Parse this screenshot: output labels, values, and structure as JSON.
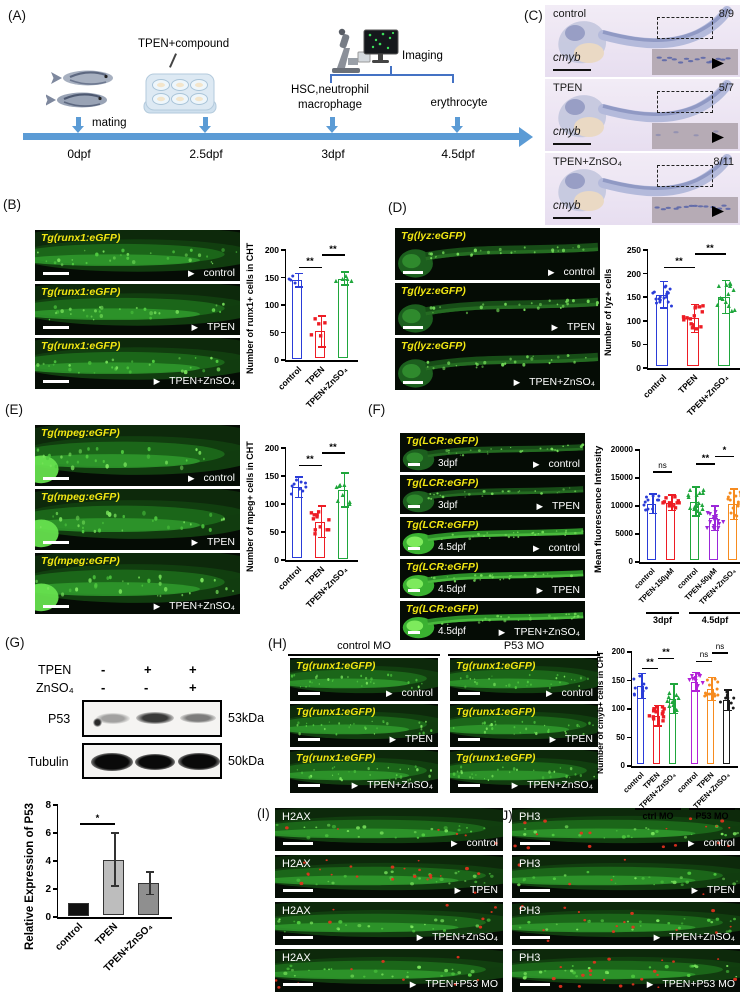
{
  "figure": {
    "panel_labels": {
      "A": "(A)",
      "B": "(B)",
      "C": "(C)",
      "D": "(D)",
      "E": "(E)",
      "F": "(F)",
      "G": "(G)",
      "H": "(H)",
      "I": "(I)",
      "J": "(J)"
    }
  },
  "panelA": {
    "compound_label": "TPEN+compound",
    "mating_label": "mating",
    "imaging_label": "Imaging",
    "imaging_targets_line1": "HSC,neutrophil",
    "imaging_targets_line2": "macrophage",
    "erythrocyte_label": "erythrocyte",
    "timepoints": [
      "0dpf",
      "2.5dpf",
      "3dpf",
      "4.5dpf"
    ],
    "arrow_color": "#5b9bd5"
  },
  "panelB": {
    "images": [
      {
        "gene": "Tg(runx1:eGFP)",
        "label": "control"
      },
      {
        "gene": "Tg(runx1:eGFP)",
        "label": "TPEN"
      },
      {
        "gene": "Tg(runx1:eGFP)",
        "label": "TPEN+ZnSO₄"
      }
    ]
  },
  "panelC": {
    "gene": "cmyb",
    "rows": [
      {
        "label": "control",
        "fraction": "8/9",
        "inset_dots": true
      },
      {
        "label": "TPEN",
        "fraction": "5/7",
        "inset_dots": false
      },
      {
        "label": "TPEN+ZnSO₄",
        "fraction": "8/11",
        "inset_dots": true
      }
    ]
  },
  "panelD": {
    "images": [
      {
        "gene": "Tg(lyz:eGFP)",
        "label": "control"
      },
      {
        "gene": "Tg(lyz:eGFP)",
        "label": "TPEN"
      },
      {
        "gene": "Tg(lyz:eGFP)",
        "label": "TPEN+ZnSO₄"
      }
    ]
  },
  "panelE": {
    "images": [
      {
        "gene": "Tg(mpeg:eGFP)",
        "label": "control"
      },
      {
        "gene": "Tg(mpeg:eGFP)",
        "label": "TPEN"
      },
      {
        "gene": "Tg(mpeg:eGFP)",
        "label": "TPEN+ZnSO₄"
      }
    ]
  },
  "panelF": {
    "images": [
      {
        "gene": "Tg(LCR:eGFP)",
        "time": "3dpf",
        "label": "control",
        "bright": false
      },
      {
        "gene": "Tg(LCR:eGFP)",
        "time": "3dpf",
        "label": "TPEN",
        "bright": false
      },
      {
        "gene": "Tg(LCR:eGFP)",
        "time": "4.5dpf",
        "label": "control",
        "bright": true
      },
      {
        "gene": "Tg(LCR:eGFP)",
        "time": "4.5dpf",
        "label": "TPEN",
        "bright": true
      },
      {
        "gene": "Tg(LCR:eGFP)",
        "time": "4.5dpf",
        "label": "TPEN+ZnSO₄",
        "bright": true
      }
    ]
  },
  "panelG": {
    "blot": {
      "tpen_label": "TPEN",
      "tpen_signs": [
        "-",
        "+",
        "+"
      ],
      "zn_label": "ZnSO₄",
      "zn_signs": [
        "-",
        "-",
        "+"
      ],
      "p53_label": "P53",
      "p53_kda": "53kDa",
      "tubulin_label": "Tubulin",
      "tubulin_kda": "50kDa"
    }
  },
  "panelH": {
    "col_headers": [
      "control MO",
      "P53 MO"
    ],
    "columns": [
      {
        "images": [
          {
            "gene": "Tg(runx1:eGFP)",
            "label": "control"
          },
          {
            "gene": "Tg(runx1:eGFP)",
            "label": "TPEN"
          },
          {
            "gene": "Tg(runx1:eGFP)",
            "label": "TPEN+ZnSO₄"
          }
        ]
      },
      {
        "images": [
          {
            "gene": "Tg(runx1:eGFP)",
            "label": "control"
          },
          {
            "gene": "Tg(runx1:eGFP)",
            "label": "TPEN"
          },
          {
            "gene": "Tg(runx1:eGFP)",
            "label": "TPEN+ZnSO₄"
          }
        ]
      }
    ]
  },
  "panelI": {
    "images": [
      {
        "stain": "H2AX",
        "label": "control",
        "red_dots": 6
      },
      {
        "stain": "H2AX",
        "label": "TPEN",
        "red_dots": 22
      },
      {
        "stain": "H2AX",
        "label": "TPEN+ZnSO₄",
        "red_dots": 7
      },
      {
        "stain": "H2AX",
        "label": "TPEN+P53 MO",
        "red_dots": 9
      }
    ]
  },
  "panelJ": {
    "images": [
      {
        "stain": "PH3",
        "label": "control",
        "red_dots": 18
      },
      {
        "stain": "PH3",
        "label": "TPEN",
        "red_dots": 5
      },
      {
        "stain": "PH3",
        "label": "TPEN+ZnSO₄",
        "red_dots": 16
      },
      {
        "stain": "PH3",
        "label": "TPEN+P53 MO",
        "red_dots": 20
      }
    ]
  },
  "chart_data": [
    {
      "panel": "B",
      "type": "bar",
      "ylabel": "Number of runx1+ cells in CHT",
      "categories": [
        "control",
        "TPEN",
        "TPEN+ZnSO₄"
      ],
      "values": [
        145,
        52,
        148
      ],
      "errors": [
        12,
        28,
        12
      ],
      "n_points": [
        4,
        5,
        5
      ],
      "colors": [
        "#2a3cd8",
        "#ed1c24",
        "#1fa63c"
      ],
      "markers": [
        "●",
        "■",
        "▲"
      ],
      "bar_style": "open",
      "ylim": [
        0,
        200
      ],
      "yticks": [
        0,
        50,
        100,
        150,
        200
      ],
      "sig": [
        {
          "a": 0,
          "b": 1,
          "label": "**",
          "y": 170
        },
        {
          "a": 1,
          "b": 2,
          "label": "**",
          "y": 192
        }
      ]
    },
    {
      "panel": "D",
      "type": "bar",
      "ylabel": "Number of lyz+ cells",
      "categories": [
        "control",
        "TPEN",
        "TPEN+ZnSO₄"
      ],
      "values": [
        155,
        105,
        150
      ],
      "errors": [
        28,
        30,
        35
      ],
      "n_points": [
        18,
        15,
        14
      ],
      "colors": [
        "#2a3cd8",
        "#ed1c24",
        "#1fa63c"
      ],
      "markers": [
        "●",
        "■",
        "▲"
      ],
      "bar_style": "open",
      "ylim": [
        0,
        250
      ],
      "yticks": [
        0,
        50,
        100,
        150,
        200,
        250
      ],
      "sig": [
        {
          "a": 0,
          "b": 1,
          "label": "**",
          "y": 215
        },
        {
          "a": 1,
          "b": 2,
          "label": "**",
          "y": 243
        }
      ]
    },
    {
      "panel": "E",
      "type": "bar",
      "ylabel": "Number of mpeg+ cells in CHT",
      "categories": [
        "control",
        "TPEN",
        "TPEN+ZnSO₄"
      ],
      "values": [
        130,
        68,
        125
      ],
      "errors": [
        18,
        28,
        30
      ],
      "n_points": [
        9,
        12,
        8
      ],
      "colors": [
        "#2a3cd8",
        "#ed1c24",
        "#1fa63c"
      ],
      "markers": [
        "●",
        "■",
        "▲"
      ],
      "bar_style": "open",
      "ylim": [
        0,
        200
      ],
      "yticks": [
        0,
        50,
        100,
        150,
        200
      ],
      "sig": [
        {
          "a": 0,
          "b": 1,
          "label": "**",
          "y": 170
        },
        {
          "a": 1,
          "b": 2,
          "label": "**",
          "y": 192
        }
      ]
    },
    {
      "panel": "F",
      "type": "bar",
      "ylabel": "Mean fluorescence Intensity",
      "categories": [
        "control",
        "TPEN-150μM",
        "control",
        "TPEN-50μM",
        "TPEN+ZnSO₄"
      ],
      "values": [
        10400,
        10600,
        10800,
        7800,
        10300
      ],
      "errors": [
        1700,
        1400,
        2600,
        2200,
        2700
      ],
      "n_points": [
        11,
        12,
        16,
        15,
        15
      ],
      "colors": [
        "#2a3cd8",
        "#ed1c24",
        "#1fa63c",
        "#9b27d9",
        "#f68b1f"
      ],
      "markers": [
        "●",
        "■",
        "▲",
        "▼",
        "●"
      ],
      "bar_style": "open",
      "ylim": [
        0,
        20000
      ],
      "yticks": [
        0,
        5000,
        10000,
        15000,
        20000
      ],
      "sig": [
        {
          "a": 0,
          "b": 1,
          "label": "ns",
          "y": 16200
        },
        {
          "a": 2,
          "b": 3,
          "label": "**",
          "y": 17600
        },
        {
          "a": 3,
          "b": 4,
          "label": "*",
          "y": 19000
        }
      ],
      "gap_after": [
        1
      ],
      "groups": [
        {
          "label": "3dpf",
          "from": 0,
          "to": 1
        },
        {
          "label": "4.5dpf",
          "from": 2,
          "to": 4
        }
      ]
    },
    {
      "panel": "G",
      "type": "bar",
      "ylabel": "Relative Expression of P53",
      "categories": [
        "control",
        "TPEN",
        "TPEN+ZnSO₄"
      ],
      "values": [
        1.0,
        4.1,
        2.4
      ],
      "errors": [
        0,
        1.9,
        0.8
      ],
      "n_points": [
        0,
        0,
        0
      ],
      "colors": [
        "#111111",
        "#bdbdbd",
        "#8f8f8f"
      ],
      "markers": [
        "●",
        "●",
        "●"
      ],
      "bar_style": "solid",
      "err_color": "#333333",
      "ylim": [
        0,
        8
      ],
      "yticks": [
        0,
        2,
        4,
        6,
        8
      ],
      "sig": [
        {
          "a": 0,
          "b": 1,
          "label": "*",
          "y": 6.7
        }
      ]
    },
    {
      "panel": "H",
      "type": "bar",
      "ylabel": "Number of cmyb+ cells in CHT",
      "categories": [
        "control",
        "TPEN",
        "TPEN+ZnSO₄",
        "control",
        "TPEN",
        "TPEN+ZnSO₄"
      ],
      "values": [
        140,
        88,
        118,
        148,
        135,
        115
      ],
      "errors": [
        22,
        18,
        26,
        16,
        20,
        18
      ],
      "n_points": [
        9,
        14,
        9,
        10,
        14,
        9
      ],
      "colors": [
        "#2a3cd8",
        "#ed1c24",
        "#1fa63c",
        "#b320d8",
        "#f68b1f",
        "#1a1a1a"
      ],
      "markers": [
        "●",
        "■",
        "▲",
        "▼",
        "●",
        "●"
      ],
      "bar_style": "open",
      "ylim": [
        0,
        200
      ],
      "yticks": [
        0,
        50,
        100,
        150,
        200
      ],
      "sig": [
        {
          "a": 0,
          "b": 1,
          "label": "**",
          "y": 172
        },
        {
          "a": 1,
          "b": 2,
          "label": "**",
          "y": 190
        },
        {
          "a": 3,
          "b": 4,
          "label": "ns",
          "y": 185
        },
        {
          "a": 4,
          "b": 5,
          "label": "ns",
          "y": 200
        }
      ],
      "gap_after": [
        2
      ],
      "groups": [
        {
          "label": "ctrl MO",
          "from": 0,
          "to": 2
        },
        {
          "label": "P53 MO",
          "from": 3,
          "to": 5
        }
      ]
    }
  ]
}
